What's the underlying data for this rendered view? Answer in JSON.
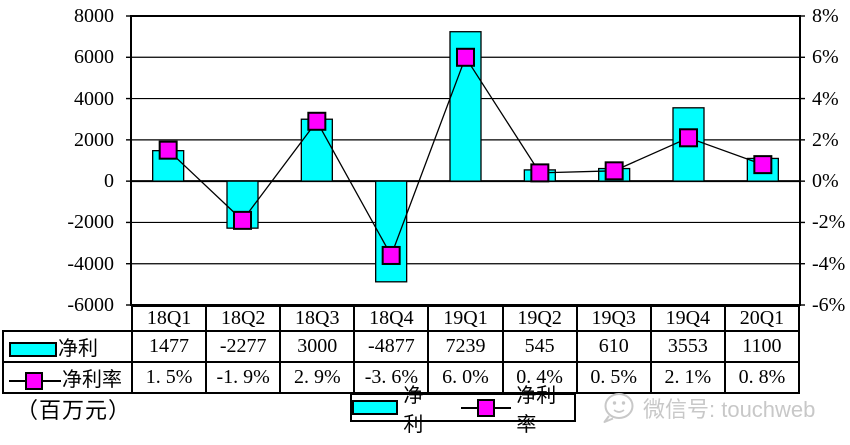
{
  "colors": {
    "bar": "#00FFFF",
    "marker": "#FF00FF",
    "line": "#000000",
    "grid": "#000000",
    "watermark": "#c8c8c8"
  },
  "chart_data": {
    "type": "combo",
    "categories": [
      "18Q1",
      "18Q2",
      "18Q3",
      "18Q4",
      "19Q1",
      "19Q2",
      "19Q3",
      "19Q4",
      "20Q1"
    ],
    "series": [
      {
        "name": "净利",
        "type": "bar",
        "axis": "left",
        "color": "#00FFFF",
        "values": [
          1477,
          -2277,
          3000,
          -4877,
          7239,
          545,
          610,
          3553,
          1100
        ]
      },
      {
        "name": "净利率",
        "type": "line",
        "axis": "right",
        "color": "#FF00FF",
        "marker": "square",
        "values": [
          1.5,
          -1.9,
          2.9,
          -3.6,
          6.0,
          0.4,
          0.5,
          2.1,
          0.8
        ],
        "unit": "%"
      }
    ],
    "left_axis": {
      "min": -6000,
      "max": 8000,
      "step": 2000,
      "ticks": [
        "8000",
        "6000",
        "4000",
        "2000",
        "0",
        "-2000",
        "-4000",
        "-6000"
      ]
    },
    "right_axis": {
      "min": -6,
      "max": 8,
      "step": 2,
      "ticks": [
        "8%",
        "6%",
        "4%",
        "2%",
        "0%",
        "-2%",
        "-4%",
        "-6%"
      ]
    },
    "grid": true,
    "legend_position": "bottom",
    "title": "",
    "xlabel": "",
    "ylabel": "（百万元）"
  },
  "table": {
    "header": [
      "18Q1",
      "18Q2",
      "18Q3",
      "18Q4",
      "19Q1",
      "19Q2",
      "19Q3",
      "19Q4",
      "20Q1"
    ],
    "rows": [
      {
        "label": "净利",
        "key": "bar",
        "values": [
          "1477",
          "-2277",
          "3000",
          "-4877",
          "7239",
          "545",
          "610",
          "3553",
          "1100"
        ]
      },
      {
        "label": "净利率",
        "key": "line",
        "values": [
          "1. 5%",
          "-1. 9%",
          "2. 9%",
          "-3. 6%",
          "6. 0%",
          "0. 4%",
          "0. 5%",
          "2. 1%",
          "0. 8%"
        ]
      }
    ]
  },
  "legend": {
    "items": [
      {
        "label": "净利",
        "key": "bar"
      },
      {
        "label": "净利率",
        "key": "line"
      }
    ]
  },
  "footer": {
    "unit_label": "（百万元）"
  },
  "watermark": {
    "text": "微信号: touchweb"
  }
}
